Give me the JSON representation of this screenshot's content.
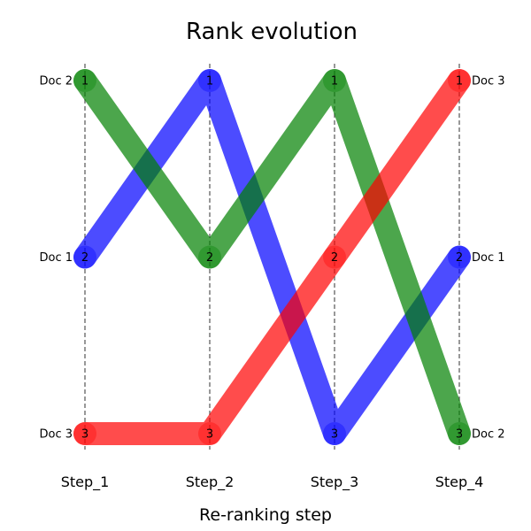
{
  "chart_data": {
    "type": "line",
    "title": "Rank evolution",
    "xlabel": "Re-ranking step",
    "ylabel": "",
    "categories": [
      "Step_1",
      "Step_2",
      "Step_3",
      "Step_4"
    ],
    "y_inverted": true,
    "ylim": [
      1,
      3
    ],
    "grid": false,
    "step_guides": "dashed vertical lines",
    "series": [
      {
        "name": "Doc 1",
        "color": "#0000ff",
        "values": [
          2,
          1,
          3,
          2
        ]
      },
      {
        "name": "Doc 2",
        "color": "#008000",
        "values": [
          1,
          2,
          1,
          3
        ]
      },
      {
        "name": "Doc 3",
        "color": "#ff0000",
        "values": [
          3,
          3,
          2,
          1
        ]
      }
    ]
  }
}
